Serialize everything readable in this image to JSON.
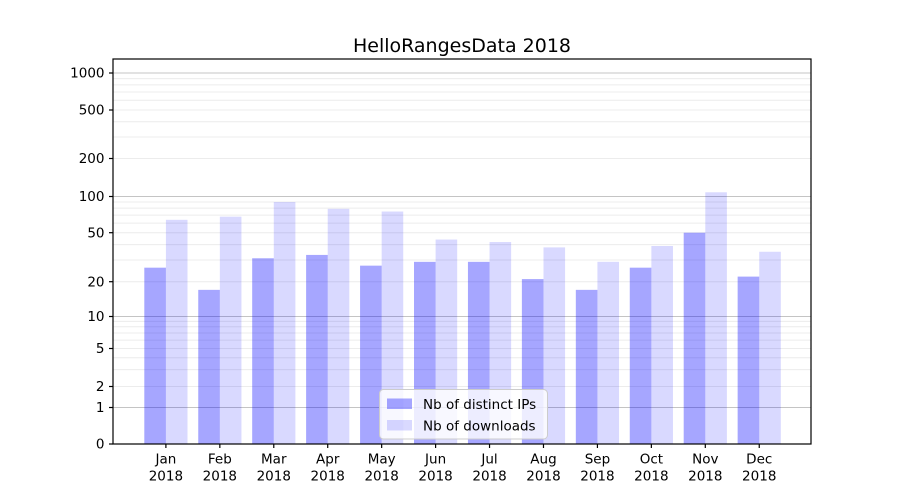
{
  "chart_data": {
    "type": "bar",
    "title": "HelloRangesData 2018",
    "categories": [
      "Jan",
      "Feb",
      "Mar",
      "Apr",
      "May",
      "Jun",
      "Jul",
      "Aug",
      "Sep",
      "Oct",
      "Nov",
      "Dec"
    ],
    "category_year": "2018",
    "series": [
      {
        "name": "Nb of distinct IPs",
        "color": "rgba(0,0,255,0.35)",
        "values": [
          26,
          17,
          31,
          33,
          27,
          29,
          29,
          21,
          17,
          26,
          50,
          22
        ]
      },
      {
        "name": "Nb of downloads",
        "color": "rgba(0,0,255,0.15)",
        "values": [
          64,
          68,
          90,
          79,
          75,
          44,
          42,
          38,
          29,
          39,
          108,
          35
        ]
      }
    ],
    "yscale": "symlog",
    "yticks": [
      0,
      1,
      2,
      5,
      10,
      20,
      50,
      100,
      200,
      500,
      1000
    ],
    "xlabel": "",
    "ylabel": "",
    "grid": "major+minor",
    "legend_position": "lower center",
    "colors": {
      "major_grid": "#c4c4c4",
      "minor_grid": "#ececec",
      "axis": "#000000",
      "text": "#000000",
      "background": "#ffffff"
    }
  }
}
